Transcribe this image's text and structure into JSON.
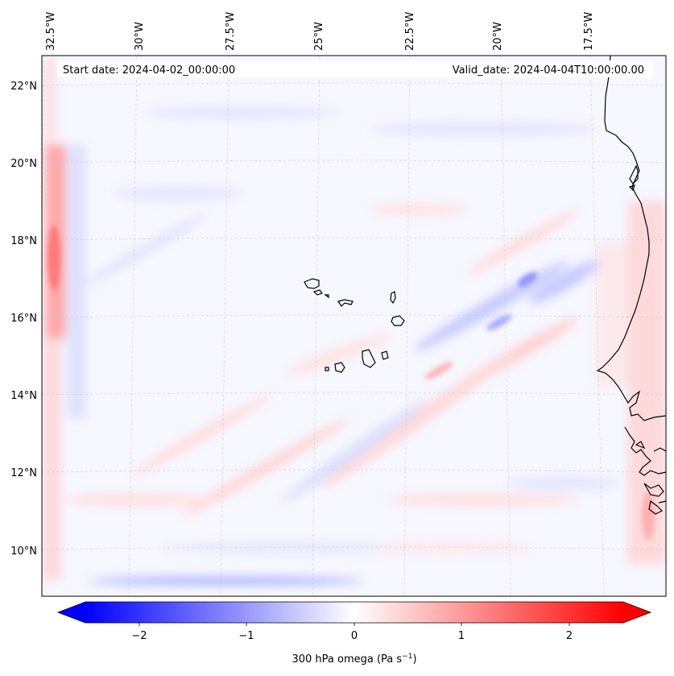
{
  "header": {
    "start_date": "Start date: 2024-04-02_00:00:00",
    "valid_date": "Valid_date: 2024-04-04T10:00:00.00"
  },
  "lon_labels": [
    "32.5°W",
    "30°W",
    "27.5°W",
    "25°W",
    "22.5°W",
    "20°W",
    "17.5°W"
  ],
  "lat_labels": [
    "22°N",
    "20°N",
    "18°N",
    "16°N",
    "14°N",
    "12°N",
    "10°N"
  ],
  "colorbar": {
    "label": "300 hPa omega (Pa s",
    "label_sup": "−1",
    "label_end": ")",
    "ticks": [
      "−2",
      "−1",
      "0",
      "1",
      "2"
    ],
    "range": [
      -2.5,
      2.5
    ],
    "colors": {
      "negative": "#0000ff",
      "zero": "#ffffff",
      "positive": "#ff0000"
    }
  },
  "map": {
    "field_background": "#f7f7ff",
    "coastline_color": "#000000",
    "gridline_color": "#c8c8c8"
  }
}
